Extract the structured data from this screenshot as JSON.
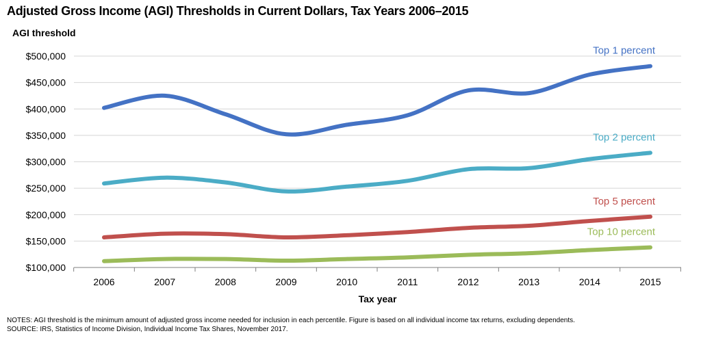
{
  "chart_data": {
    "type": "line",
    "title": "Adjusted Gross Income (AGI) Thresholds in Current Dollars, Tax Years 2006–2015",
    "ylabel": "AGI threshold",
    "xlabel": "Tax year",
    "x": [
      2006,
      2007,
      2008,
      2009,
      2010,
      2011,
      2012,
      2013,
      2014,
      2015
    ],
    "x_tick_labels": [
      "2006",
      "2007",
      "2008",
      "2009",
      "2010",
      "2011",
      "2012",
      "2013",
      "2014",
      "2015"
    ],
    "ylim": [
      100000,
      500000
    ],
    "y_tick_labels": [
      "$100,000",
      "$150,000",
      "$200,000",
      "$250,000",
      "$300,000",
      "$350,000",
      "$400,000",
      "$450,000",
      "$500,000"
    ],
    "y_ticks": [
      100000,
      150000,
      200000,
      250000,
      300000,
      350000,
      400000,
      450000,
      500000
    ],
    "grid": true,
    "series": [
      {
        "name": "Top 1 percent",
        "color": "#4472c4",
        "values": [
          402000,
          425000,
          390000,
          352000,
          370000,
          388000,
          435000,
          430000,
          465000,
          481000
        ]
      },
      {
        "name": "Top 2 percent",
        "color": "#4bacc6",
        "values": [
          259000,
          270000,
          261000,
          244000,
          253000,
          264000,
          286000,
          288000,
          305000,
          317000
        ]
      },
      {
        "name": "Top 5 percent",
        "color": "#c0504d",
        "values": [
          157000,
          164000,
          163000,
          157000,
          161000,
          167000,
          175000,
          179000,
          188000,
          196000
        ]
      },
      {
        "name": "Top 10 percent",
        "color": "#9bbb59",
        "values": [
          112000,
          116000,
          116000,
          113000,
          116000,
          119000,
          124000,
          127000,
          133000,
          138000
        ]
      }
    ]
  },
  "notes": {
    "line1": "NOTES: AGI threshold is the minimum amount of adjusted gross income needed for inclusion in each percentile. Figure is based on all individual income tax returns, excluding dependents.",
    "line2": "SOURCE: IRS, Statistics of Income Division, Individual Income Tax Shares, November 2017."
  }
}
